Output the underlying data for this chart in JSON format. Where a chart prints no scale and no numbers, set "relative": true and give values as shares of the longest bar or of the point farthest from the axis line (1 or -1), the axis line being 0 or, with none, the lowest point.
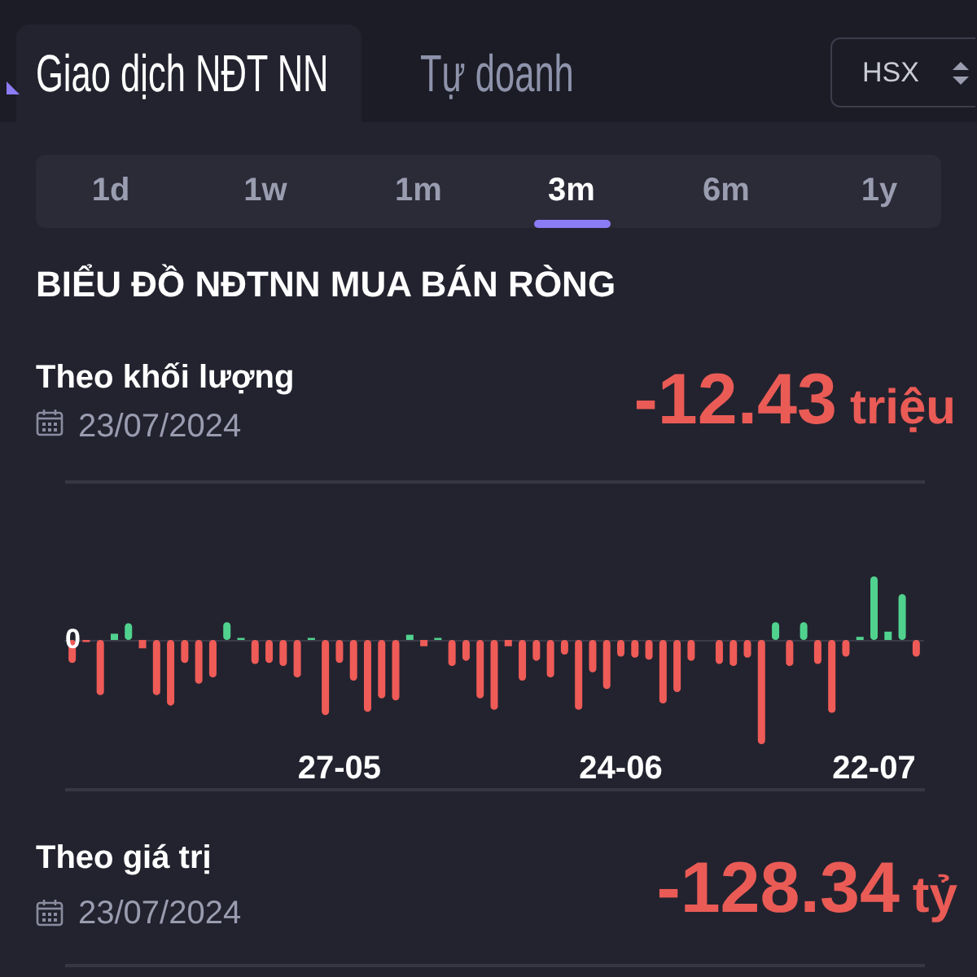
{
  "chart_data": {
    "type": "bar",
    "title": "BIỂU ĐỒ NĐTNN MUA BÁN RÒNG",
    "subtitle": "Theo khối lượng",
    "categories": [
      null,
      null,
      null,
      null,
      null,
      null,
      null,
      null,
      null,
      null,
      null,
      null,
      null,
      null,
      null,
      null,
      null,
      null,
      null,
      "27-05",
      null,
      null,
      null,
      null,
      null,
      null,
      null,
      null,
      null,
      null,
      null,
      null,
      null,
      null,
      null,
      null,
      null,
      null,
      null,
      "24-06",
      null,
      null,
      null,
      null,
      null,
      null,
      null,
      null,
      null,
      null,
      null,
      null,
      null,
      null,
      null,
      null,
      null,
      "22-07",
      null,
      null,
      null
    ],
    "values": [
      -0.22,
      -0.02,
      -0.53,
      0.06,
      0.16,
      -0.08,
      -0.53,
      -0.63,
      -0.22,
      -0.42,
      -0.36,
      0.17,
      0.02,
      -0.23,
      -0.22,
      -0.25,
      -0.36,
      0.02,
      -0.72,
      -0.22,
      -0.39,
      -0.69,
      -0.56,
      -0.58,
      0.05,
      -0.06,
      0.02,
      -0.25,
      -0.2,
      -0.56,
      -0.67,
      -0.06,
      -0.39,
      -0.2,
      -0.36,
      -0.14,
      -0.67,
      -0.31,
      -0.47,
      -0.16,
      -0.17,
      -0.19,
      -0.61,
      -0.5,
      -0.2,
      null,
      -0.23,
      -0.25,
      -0.17,
      -1,
      0.17,
      -0.25,
      0.17,
      -0.23,
      -0.7,
      -0.16,
      0.03,
      0.61,
      0.08,
      0.44,
      -0.16
    ],
    "colors": [
      "#ef5b57",
      "#ef5b57",
      "#ef5b57",
      "#50d28e",
      "#50d28e",
      "#ef5b57",
      "#ef5b57",
      "#ef5b57",
      "#ef5b57",
      "#ef5b57",
      "#ef5b57",
      "#50d28e",
      "#50d28e",
      "#ef5b57",
      "#ef5b57",
      "#ef5b57",
      "#ef5b57",
      "#50d28e",
      "#ef5b57",
      "#ef5b57",
      "#ef5b57",
      "#ef5b57",
      "#ef5b57",
      "#ef5b57",
      "#50d28e",
      "#ef5b57",
      "#50d28e",
      "#ef5b57",
      "#ef5b57",
      "#ef5b57",
      "#ef5b57",
      "#ef5b57",
      "#ef5b57",
      "#ef5b57",
      "#ef5b57",
      "#ef5b57",
      "#ef5b57",
      "#ef5b57",
      "#ef5b57",
      "#ef5b57",
      "#ef5b57",
      "#ef5b57",
      "#ef5b57",
      "#ef5b57",
      "#ef5b57",
      null,
      "#ef5b57",
      "#ef5b57",
      "#ef5b57",
      "#ef5b57",
      "#50d28e",
      "#ef5b57",
      "#50d28e",
      "#ef5b57",
      "#ef5b57",
      "#ef5b57",
      "#50d28e",
      "#50d28e",
      "#50d28e",
      "#50d28e",
      "#ef5b57"
    ],
    "relative": true,
    "annotations": [
      "Giao dịch NĐT NN",
      "Tự doanh",
      "HSX",
      "1d",
      "1w",
      "1m",
      "3m",
      "6m",
      "1y",
      "23/07/2024",
      "-12.43 triệu",
      "Theo giá trị",
      "23/07/2024",
      "-128.34 tỷ",
      {
        "text": "0",
        "y": 0
      }
    ]
  }
}
